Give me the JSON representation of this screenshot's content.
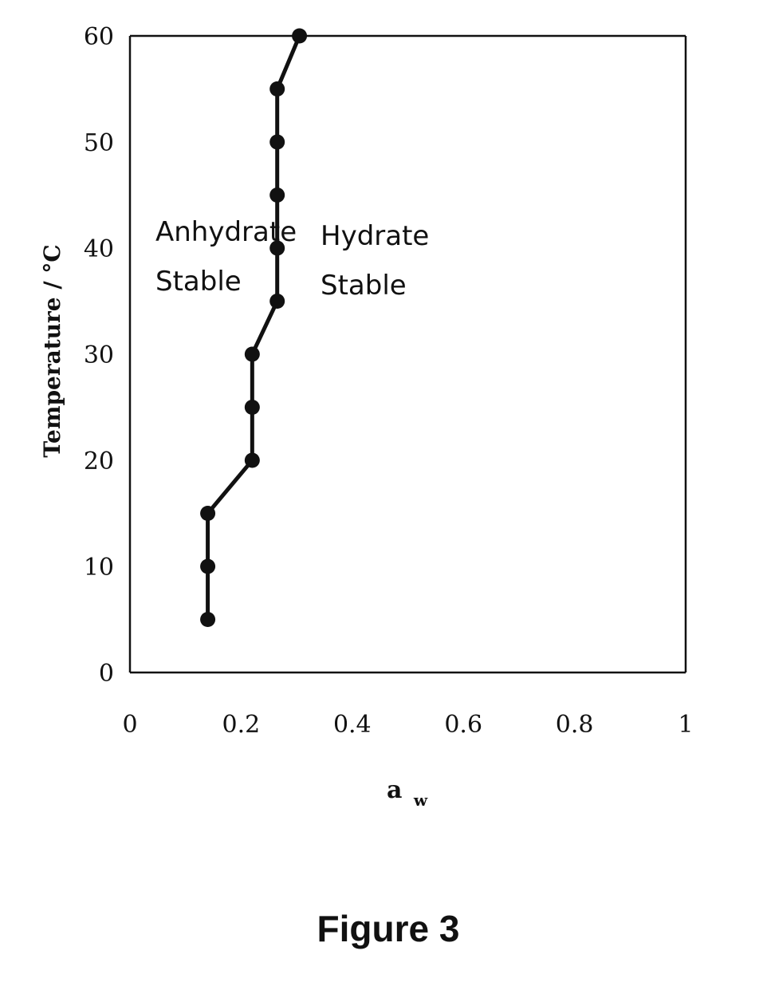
{
  "chart_data": {
    "type": "line",
    "xlabel": "a",
    "xlabel_sub": "w",
    "ylabel": "Temperature / °C",
    "xlim": [
      0,
      1
    ],
    "ylim": [
      0,
      60
    ],
    "x_ticks": [
      "0",
      "0.2",
      "0.4",
      "0.6",
      "0.8",
      "1"
    ],
    "y_ticks": [
      "0",
      "10",
      "20",
      "30",
      "40",
      "50",
      "60"
    ],
    "grid": false,
    "series": [
      {
        "x": [
          0.14,
          0.14,
          0.14,
          0.22,
          0.22,
          0.22,
          0.265,
          0.265,
          0.265,
          0.265,
          0.265,
          0.305
        ],
        "y": [
          5,
          10,
          15,
          20,
          25,
          30,
          35,
          40,
          45,
          50,
          55,
          60
        ]
      }
    ],
    "annotations": [
      {
        "lines": [
          "Anhydrate",
          "Stable"
        ]
      },
      {
        "lines": [
          "Hydrate",
          "Stable"
        ]
      }
    ],
    "colors": {
      "line": "#111111",
      "marker": "#111111",
      "axis": "#111111"
    }
  },
  "caption": "Figure 3"
}
